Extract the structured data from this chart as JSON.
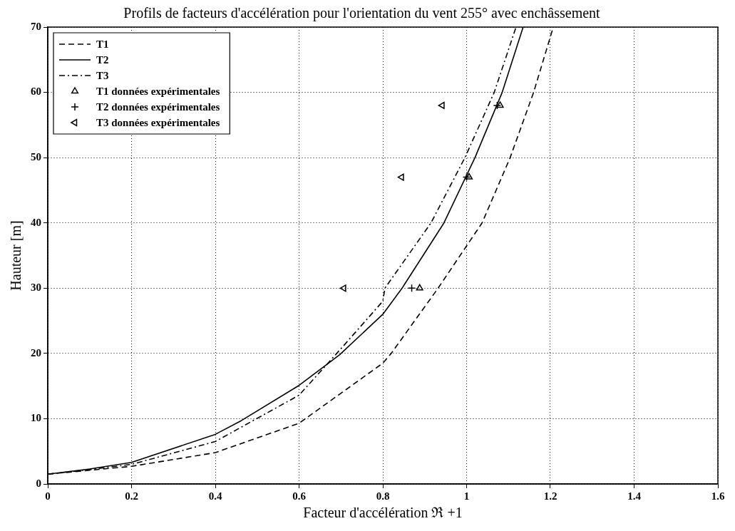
{
  "chart_data": {
    "type": "line",
    "title": "Profils de facteurs d'accélération pour l'orientation du vent 255° avec enchâssement",
    "xlabel": "Facteur d'accélération ℜ +1",
    "ylabel": "Hauteur [m]",
    "xlim": [
      0,
      1.6
    ],
    "xticks": [
      0,
      0.2,
      0.4,
      0.6,
      0.8,
      1,
      1.2,
      1.4,
      1.6
    ],
    "ylim": [
      0,
      70
    ],
    "yticks": [
      0,
      10,
      20,
      30,
      40,
      50,
      60,
      70
    ],
    "grid": true,
    "legend": "top left",
    "series": [
      {
        "name": "T1",
        "color": "#000000",
        "line_style": "dashed",
        "marker": "none",
        "x": [
          0,
          0.1,
          0.2,
          0.4,
          0.6,
          0.8,
          0.82,
          0.932,
          1.037,
          1.104,
          1.16,
          1.207
        ],
        "values": [
          1.5,
          2.1,
          2.7,
          4.8,
          9.3,
          18.5,
          20,
          30,
          40,
          50,
          60,
          70
        ]
      },
      {
        "name": "T2",
        "color": "#000000",
        "line_style": "solid",
        "marker": "none",
        "x": [
          0,
          0.1,
          0.2,
          0.4,
          0.462,
          0.6,
          0.697,
          0.8,
          0.846,
          0.946,
          1.02,
          1.085,
          1.135
        ],
        "values": [
          1.5,
          2.3,
          3.3,
          7.6,
          9.7,
          15.1,
          19.8,
          26,
          30,
          40,
          50,
          60,
          70
        ]
      },
      {
        "name": "T3",
        "color": "#000000",
        "line_style": "dashdot",
        "marker": "none",
        "x": [
          0,
          0.1,
          0.2,
          0.4,
          0.6,
          0.69,
          0.8,
          0.805,
          0.915,
          0.996,
          1.066,
          1.118
        ],
        "values": [
          1.5,
          2.2,
          3,
          6.5,
          13.6,
          20,
          28,
          30,
          40,
          50,
          60,
          70
        ]
      },
      {
        "name": "T1 données expérimentales",
        "type": "scatter",
        "color": "#000000",
        "marker": "triangle",
        "x": [
          0.888,
          1.006,
          1.08
        ],
        "values": [
          30,
          47,
          58
        ]
      },
      {
        "name": "T2 données expérimentales",
        "type": "scatter",
        "color": "#000000",
        "marker": "cross",
        "x": [
          0.869,
          1,
          1.073
        ],
        "values": [
          30,
          47,
          58
        ]
      },
      {
        "name": "T3 données expérimentales",
        "type": "scatter",
        "color": "#000000",
        "marker": "triangle-left",
        "x": [
          0.707,
          0.845,
          0.942
        ],
        "values": [
          30,
          47,
          58
        ]
      }
    ]
  }
}
